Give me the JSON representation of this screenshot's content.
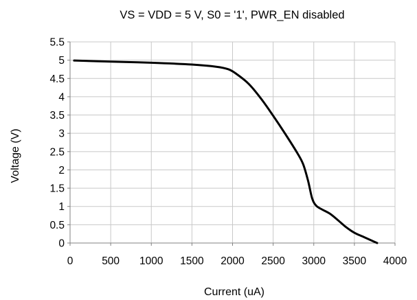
{
  "chart_data": {
    "type": "line",
    "title": "VS = VDD = 5 V, S0 = '1', PWR_EN disabled",
    "xlabel": "Current (uA)",
    "ylabel": "Voltage (V)",
    "xlim": [
      0,
      4000
    ],
    "ylim": [
      0,
      5.5
    ],
    "xticks": [
      0,
      500,
      1000,
      1500,
      2000,
      2500,
      3000,
      3500,
      4000
    ],
    "yticks": [
      0,
      0.5,
      1,
      1.5,
      2,
      2.5,
      3,
      3.5,
      4,
      4.5,
      5,
      5.5
    ],
    "grid": true,
    "legend": "none",
    "series": [
      {
        "color": "#000000",
        "x": [
          50,
          500,
          1000,
          1500,
          1800,
          1950,
          2050,
          2200,
          2350,
          2500,
          2650,
          2800,
          2870,
          2930,
          2980,
          3030,
          3100,
          3200,
          3300,
          3400,
          3500,
          3600,
          3700,
          3780
        ],
        "y": [
          4.99,
          4.96,
          4.93,
          4.88,
          4.82,
          4.75,
          4.62,
          4.35,
          3.95,
          3.48,
          2.98,
          2.45,
          2.15,
          1.7,
          1.22,
          1.02,
          0.92,
          0.8,
          0.62,
          0.43,
          0.28,
          0.18,
          0.08,
          0.0
        ]
      }
    ]
  }
}
